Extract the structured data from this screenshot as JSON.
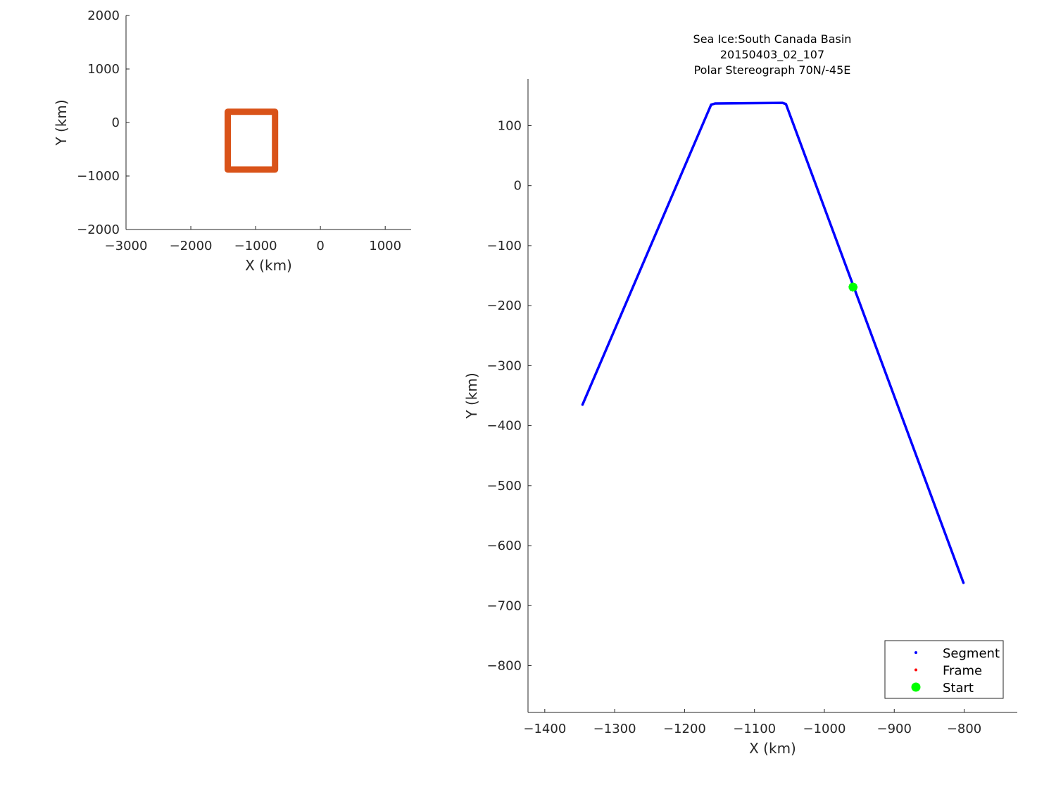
{
  "chart_data": [
    {
      "type": "line",
      "xlabel": "X (km)",
      "ylabel": "Y (km)",
      "xlim": [
        -3000,
        1400
      ],
      "ylim": [
        -2000,
        2000
      ],
      "xticks": [
        -3000,
        -2000,
        -1000,
        0,
        1000
      ],
      "yticks": [
        -2000,
        -1000,
        0,
        1000,
        2000
      ],
      "xtick_labels": [
        "−3000",
        "−2000",
        "−1000",
        "0",
        "1000"
      ],
      "ytick_labels": [
        "−2000",
        "−1000",
        "0",
        "1000",
        "2000"
      ],
      "grid": false,
      "series": [
        {
          "color": "#d95319",
          "x": [
            -1430,
            -700,
            -700,
            -1430,
            -1430
          ],
          "y": [
            200,
            200,
            -880,
            -880,
            200
          ]
        }
      ]
    },
    {
      "type": "line",
      "title": [
        "Sea Ice:South Canada Basin",
        "20150403_02_107",
        "Polar Stereograph 70N/-45E"
      ],
      "xlabel": "X (km)",
      "ylabel": "Y (km)",
      "xlim": [
        -1424,
        -724
      ],
      "ylim": [
        -878,
        178
      ],
      "xticks": [
        -1400,
        -1300,
        -1200,
        -1100,
        -1000,
        -900,
        -800
      ],
      "yticks": [
        100,
        0,
        -100,
        -200,
        -300,
        -400,
        -500,
        -600,
        -700,
        -800
      ],
      "xtick_labels": [
        "−1400",
        "−1300",
        "−1200",
        "−1100",
        "−1000",
        "−900",
        "−800"
      ],
      "ytick_labels": [
        "100",
        "0",
        "−100",
        "−200",
        "−300",
        "−400",
        "−500",
        "−600",
        "−700",
        "−800"
      ],
      "grid": false,
      "legend_position": "bottom-right",
      "series": [
        {
          "name": "Segment",
          "color": "#0000ff",
          "x": [
            -1346,
            -1162,
            -1156,
            -1060,
            -1055,
            -801
          ],
          "y": [
            -365,
            135,
            137,
            138,
            136,
            -662
          ]
        },
        {
          "name": "Frame",
          "color": "#ff0000",
          "x": [],
          "y": []
        },
        {
          "name": "Start",
          "color": "#00ff00",
          "marker": "star",
          "x": [
            -959
          ],
          "y": [
            -169
          ]
        }
      ]
    }
  ]
}
